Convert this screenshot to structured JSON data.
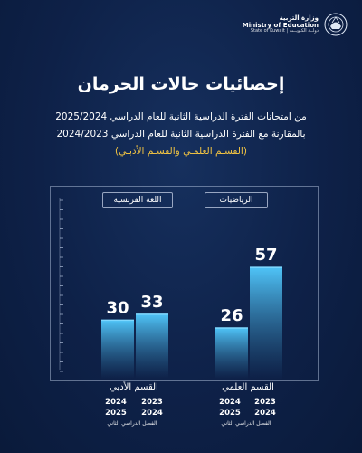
{
  "header": {
    "ministry_ar": "وزارة التربية",
    "ministry_en": "Ministry of Education",
    "state": "State of Kuwait | دولــة الكـويــت",
    "emblem_icon": "kuwait-emblem-icon"
  },
  "title": "إحصائيات حالات الحرمان",
  "subtitle": {
    "line1": "من امتحانات الفترة الدراسية الثانية للعام الدراسي 2025/2024",
    "line2": "بالمقارنة مع الفترة الدراسية الثانية للعام الدراسي 2024/2023",
    "line3": "(القسـم العلمـي والقسـم الأدبـي)"
  },
  "chart_data": {
    "type": "bar",
    "panels": [
      {
        "label": "الرياضيات",
        "group": "القسم العلمي"
      },
      {
        "label": "اللغة الفرنسية",
        "group": "القسم الأدبي"
      }
    ],
    "groups": [
      {
        "name": "القسم العلمي",
        "subject": "الرياضيات",
        "categories": [
          "2024 2025",
          "2023 2024"
        ],
        "values": [
          26,
          57
        ]
      },
      {
        "name": "القسم الأدبي",
        "subject": "اللغة الفرنسية",
        "categories": [
          "2024 2025",
          "2023 2024"
        ],
        "values": [
          30,
          33
        ]
      }
    ],
    "period_label": "الفصل الدراسي الثاني",
    "ylim": [
      0,
      90
    ],
    "grid": false,
    "colors": {
      "bar_top": "#4fc3f7",
      "bar_bottom": "#0e2148",
      "accent": "#f4c542"
    }
  },
  "x_labels": {
    "science": {
      "year_a": [
        "2024",
        "2025"
      ],
      "year_b": [
        "2023",
        "2024"
      ],
      "period": "الفصل الدراسي الثاني"
    },
    "literary": {
      "year_a": [
        "2024",
        "2025"
      ],
      "year_b": [
        "2023",
        "2024"
      ],
      "period": "الفصل الدراسي الثاني"
    }
  }
}
